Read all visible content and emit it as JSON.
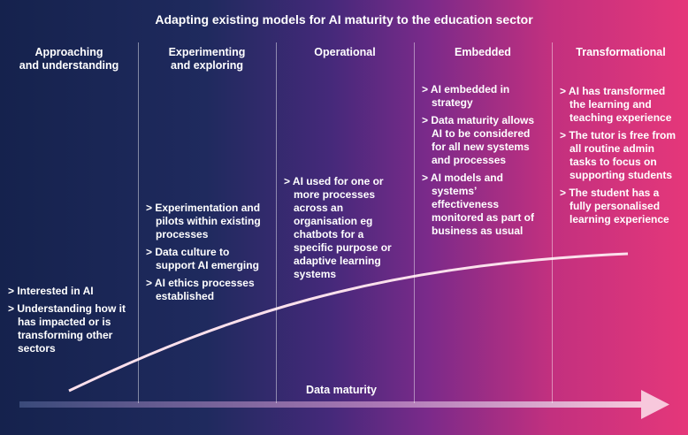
{
  "title": "Adapting existing models for AI maturity to the education sector",
  "axis_label": "Data maturity",
  "columns": [
    {
      "heading": [
        "Approaching",
        "and understanding"
      ],
      "items": [
        "> Interested in AI",
        "> Understanding how it has impacted or is transforming other sectors"
      ]
    },
    {
      "heading": [
        "Experimenting",
        "and exploring"
      ],
      "items": [
        "> Experimentation and pilots within existing processes",
        "> Data culture to support AI emerging",
        "> AI ethics processes established"
      ]
    },
    {
      "heading": [
        "Operational"
      ],
      "items": [
        "> AI used for one or more processes across an organisation eg chatbots for a specific purpose or adaptive learning systems"
      ]
    },
    {
      "heading": [
        "Embedded"
      ],
      "items": [
        "> AI embedded in strategy",
        "> Data maturity allows AI to be considered for all new systems and processes",
        "> AI models and systems’ effectiveness monitored as part of business as usual"
      ]
    },
    {
      "heading": [
        "Transformational"
      ],
      "items": [
        "> AI has transformed the learning and teaching experience",
        "> The tutor is free from all routine admin tasks to focus on supporting students",
        "> The student has a fully personalised learning experience"
      ]
    }
  ]
}
